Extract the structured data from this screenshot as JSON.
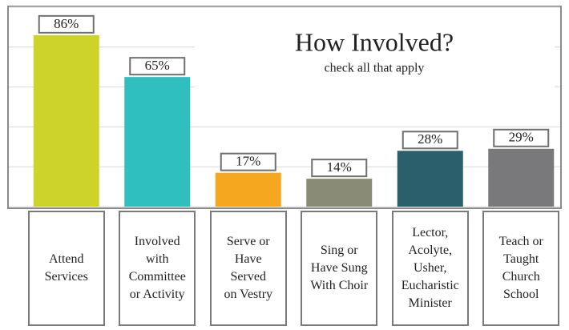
{
  "chart_data": {
    "type": "bar",
    "title": "How Involved?",
    "subtitle": "check all that apply",
    "categories": [
      "Attend\nServices",
      "Involved\nwith\nCommittee\nor Activity",
      "Serve or\nHave\nServed\non Vestry",
      "Sing or\nHave Sung\nWith Choir",
      "Lector,\nAcolyte,\nUsher,\nEucharistic\nMinister",
      "Teach or\nTaught\nChurch\nSchool"
    ],
    "values": [
      86,
      65,
      17,
      14,
      28,
      29
    ],
    "value_labels": [
      "86%",
      "65%",
      "17%",
      "14%",
      "28%",
      "29%"
    ],
    "colors": [
      "#cdd32a",
      "#2fbfbf",
      "#f5a81f",
      "#8a8b76",
      "#2a5f6b",
      "#79797b"
    ],
    "ylim": [
      0,
      100
    ],
    "yticks": [
      0,
      20,
      40,
      60,
      80,
      100
    ],
    "grid": true
  }
}
